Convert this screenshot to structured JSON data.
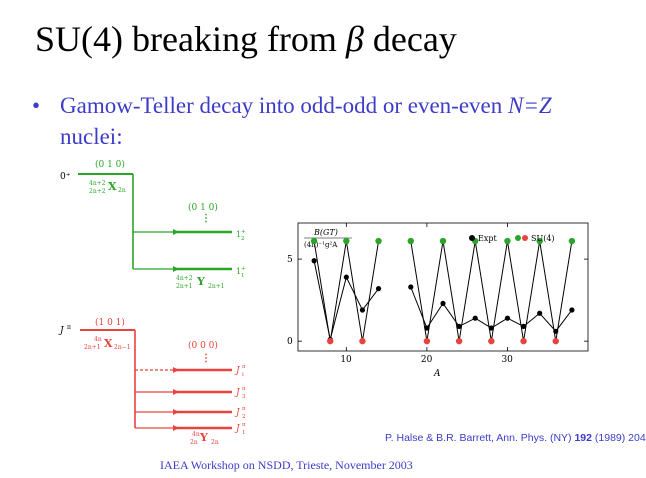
{
  "slide": {
    "title_text": "SU(4) breaking from ",
    "title_symbol": "β",
    "title_tail": " decay",
    "bullet_symbol": "•",
    "bullet_part1": "Gamow-Teller decay into odd-odd or even-even ",
    "bullet_nz": "N=Z",
    "bullet_part2": " nuclei:",
    "citation_authors": "P. Halse & B.R. Barrett, Ann. Phys. (NY) ",
    "citation_volume": "192",
    "citation_rest": " (1989) 204",
    "footer": "IAEA Workshop on NSDD, Trieste, November 2003"
  },
  "colors": {
    "text_blue": "#3d3cc9",
    "green": "#2aa52a",
    "red": "#e8433c",
    "black": "#000000"
  },
  "level_scheme": {
    "green": {
      "parent_spin": "0⁺",
      "parent_rep": "(0 1 0)",
      "parent_label": "X",
      "parent_top": "4n+2",
      "parent_bot": "2n+2",
      "parent_sub": "2n",
      "daughter_rep": "(0 1 0)",
      "daughter_label": "Y",
      "daughter_top": "4n+2",
      "daughter_bot": "2n+1",
      "daughter_sub": "2n+1",
      "levels": [
        {
          "label": "1",
          "sup": "+",
          "sub": "2"
        },
        {
          "label": "1",
          "sup": "+",
          "sub": "1"
        }
      ]
    },
    "red": {
      "parent_spin": "J",
      "parent_spin_sup": "π",
      "parent_rep": "(1 0 1)",
      "parent_label": "X",
      "parent_top": "4n",
      "parent_bot": "2n+1",
      "parent_sub": "2n−1",
      "daughter_rep": "(0 0 0)",
      "daughter_label": "Y",
      "daughter_top": "4n",
      "daughter_bot": "2n",
      "daughter_sub": "2n",
      "levels": [
        {
          "label": "J",
          "sup": "π",
          "sub": "i"
        },
        {
          "label": "J",
          "sup": "π",
          "sub": "3"
        },
        {
          "label": "J",
          "sup": "π",
          "sub": "2"
        },
        {
          "label": "J",
          "sup": "π",
          "sub": "1"
        }
      ]
    }
  },
  "chart_data": {
    "type": "scatter",
    "ylabel_top": "B(GT)",
    "ylabel_bottom": "(4π)⁻¹g²A",
    "xlabel": "A",
    "xlim": [
      4,
      40
    ],
    "ylim": [
      -0.6,
      7.2
    ],
    "xticks": [
      10,
      20,
      30
    ],
    "yticks": [
      0,
      5
    ],
    "grid": false,
    "legend_position": "top-right",
    "series": [
      {
        "name": "Expt",
        "color": "#000000",
        "connected": true,
        "points": [
          [
            6,
            4.9
          ],
          [
            8,
            0.1
          ],
          [
            10,
            3.9
          ],
          [
            12,
            1.9
          ],
          [
            14,
            3.2
          ],
          [
            18,
            3.3
          ],
          [
            20,
            0.8
          ],
          [
            22,
            2.3
          ],
          [
            24,
            0.9
          ],
          [
            26,
            1.4
          ],
          [
            28,
            0.8
          ],
          [
            30,
            1.4
          ],
          [
            32,
            0.9
          ],
          [
            34,
            1.7
          ],
          [
            36,
            0.6
          ],
          [
            38,
            1.9
          ]
        ]
      },
      {
        "name": "SU(4)",
        "color": "#2aa52a",
        "color_secondary": "#e8433c",
        "connected": true,
        "points": [
          [
            6,
            6.1
          ],
          [
            8,
            0
          ],
          [
            10,
            6.1
          ],
          [
            12,
            0
          ],
          [
            14,
            6.1
          ],
          [
            18,
            6.1
          ],
          [
            20,
            0
          ],
          [
            22,
            6.1
          ],
          [
            24,
            0
          ],
          [
            26,
            6.1
          ],
          [
            28,
            0
          ],
          [
            30,
            6.1
          ],
          [
            32,
            0
          ],
          [
            34,
            6.1
          ],
          [
            36,
            0
          ],
          [
            38,
            6.1
          ]
        ]
      }
    ]
  }
}
